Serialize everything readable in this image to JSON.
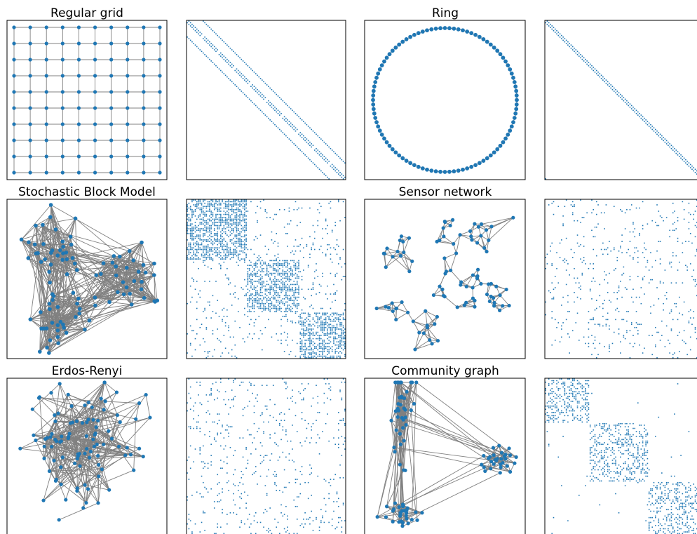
{
  "figure": {
    "panels": [
      {
        "id": "regular-grid",
        "title": "Regular grid",
        "kind": "graph",
        "layout": "grid",
        "nodes": 100,
        "rows": 10,
        "cols": 10
      },
      {
        "id": "regular-grid-adjacency",
        "title": "",
        "kind": "adjacency",
        "pattern": "grid-bands",
        "nodes": 100
      },
      {
        "id": "ring",
        "title": "Ring",
        "kind": "graph",
        "layout": "ring",
        "nodes": 100
      },
      {
        "id": "ring-adjacency",
        "title": "",
        "kind": "adjacency",
        "pattern": "ring-band",
        "nodes": 100
      },
      {
        "id": "stochastic-block-model",
        "title": "Stochastic Block Model",
        "kind": "graph",
        "layout": "blocks",
        "nodes": 100,
        "blocks": 3
      },
      {
        "id": "stochastic-block-model-adjacency",
        "title": "",
        "kind": "adjacency",
        "pattern": "blocks",
        "blocks": 3
      },
      {
        "id": "sensor-network",
        "title": "Sensor network",
        "kind": "graph",
        "layout": "sensor",
        "nodes": 100
      },
      {
        "id": "sensor-network-adjacency",
        "title": "",
        "kind": "adjacency",
        "pattern": "sparse"
      },
      {
        "id": "erdos-renyi",
        "title": "Erdos-Renyi",
        "kind": "graph",
        "layout": "random",
        "nodes": 100
      },
      {
        "id": "erdos-renyi-adjacency",
        "title": "",
        "kind": "adjacency",
        "pattern": "random"
      },
      {
        "id": "community-graph",
        "title": "Community graph",
        "kind": "graph",
        "layout": "community",
        "nodes": 100,
        "communities": 3
      },
      {
        "id": "community-graph-adjacency",
        "title": "",
        "kind": "adjacency",
        "pattern": "community"
      }
    ]
  },
  "colors": {
    "node": "#1f77b4",
    "edge": "#808080",
    "frame": "#000000",
    "background": "#ffffff"
  }
}
